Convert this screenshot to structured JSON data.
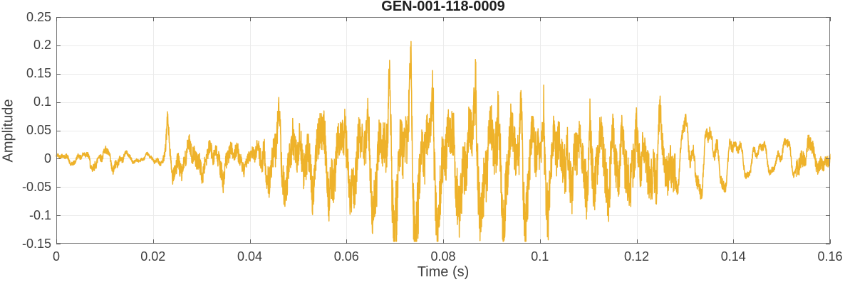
{
  "figure": {
    "title": "GEN-001-118-0009"
  },
  "colors": {
    "waveform": "#eeb22a",
    "axis_box": "#7b7b7b",
    "tick_mark": "#5f5f5f",
    "grid_line": "#ebebeb",
    "title_text": "#1f1f1f",
    "label_text": "#3f3f3f",
    "background": "#ffffff"
  },
  "chart_data": {
    "type": "line",
    "title": "GEN-001-118-0009",
    "xlabel": "Time (s)",
    "ylabel": "Amplitude",
    "xlim": [
      0,
      0.16
    ],
    "ylim": [
      -0.15,
      0.25
    ],
    "xticks": [
      0,
      0.02,
      0.04,
      0.06,
      0.08,
      0.1,
      0.12,
      0.14,
      0.16
    ],
    "xtick_labels": [
      "0",
      "0.02",
      "0.04",
      "0.06",
      "0.08",
      "0.1",
      "0.12",
      "0.14",
      "0.16"
    ],
    "yticks": [
      -0.15,
      -0.1,
      -0.05,
      0,
      0.05,
      0.1,
      0.15,
      0.2,
      0.25
    ],
    "ytick_labels": [
      "-0.15",
      "-0.1",
      "-0.05",
      "0",
      "0.05",
      "0.1",
      "0.15",
      "0.2",
      "0.25"
    ],
    "grid": true,
    "box": true,
    "tick_direction": "in",
    "legend": null,
    "description": "Dense speech-like audio waveform, quiet until ~0.022 s, voiced burst with periodic pitch spikes from ~0.045-0.13 s (max ~0.225 at 0.073 s, ~0.216 at 0.086 s, negative excursions to ~-0.12), decaying periodic tail to 0.16 s",
    "series": [
      {
        "name": "waveform",
        "color": "#eeb22a",
        "max_value": 0.225,
        "min_value": -0.122,
        "pitch_hz_mid": 225,
        "pitch_hz_tail": 196,
        "envelope": {
          "dt_ms": 2,
          "upper": [
            0.01,
            0.013,
            0.011,
            0.016,
            0.018,
            0.022,
            0.022,
            0.014,
            0.009,
            0.008,
            0.01,
            0.02,
            0.032,
            0.03,
            0.032,
            0.03,
            0.027,
            0.032,
            0.027,
            0.032,
            0.022,
            0.03,
            0.045,
            0.048,
            0.046,
            0.05,
            0.05,
            0.055,
            0.058,
            0.055,
            0.058,
            0.058,
            0.06,
            0.062,
            0.063,
            0.065,
            0.068,
            0.066,
            0.065,
            0.063,
            0.065,
            0.063,
            0.066,
            0.068,
            0.065,
            0.066,
            0.063,
            0.063,
            0.063,
            0.06,
            0.063,
            0.06,
            0.06,
            0.06,
            0.056,
            0.058,
            0.055,
            0.055,
            0.052,
            0.055,
            0.05,
            0.05,
            0.048,
            0.046,
            0.06,
            0.09,
            0.08,
            0.082,
            0.075,
            0.06,
            0.057,
            0.048,
            0.044,
            0.042,
            0.04,
            0.048,
            0.042,
            0.038,
            0.036,
            0.028,
            0.022
          ],
          "lower": [
            -0.01,
            -0.011,
            -0.013,
            -0.014,
            -0.027,
            -0.02,
            -0.027,
            -0.02,
            -0.009,
            -0.008,
            -0.01,
            -0.015,
            -0.035,
            -0.032,
            -0.027,
            -0.032,
            -0.03,
            -0.046,
            -0.027,
            -0.024,
            -0.02,
            -0.035,
            -0.055,
            -0.055,
            -0.052,
            -0.06,
            -0.056,
            -0.062,
            -0.066,
            -0.062,
            -0.068,
            -0.066,
            -0.07,
            -0.074,
            -0.078,
            -0.095,
            -0.1,
            -0.098,
            -0.095,
            -0.088,
            -0.09,
            -0.088,
            -0.092,
            -0.09,
            -0.088,
            -0.09,
            -0.088,
            -0.085,
            -0.088,
            -0.085,
            -0.088,
            -0.085,
            -0.082,
            -0.085,
            -0.082,
            -0.085,
            -0.082,
            -0.085,
            -0.082,
            -0.078,
            -0.08,
            -0.078,
            -0.074,
            -0.07,
            -0.07,
            -0.08,
            -0.086,
            -0.075,
            -0.068,
            -0.067,
            -0.05,
            -0.042,
            -0.035,
            -0.032,
            -0.031,
            -0.036,
            -0.04,
            -0.032,
            -0.028,
            -0.025,
            -0.02
          ]
        },
        "pulses_t_up_down_ms": [
          [
            23.0,
            0.048,
            -0.038
          ],
          [
            43.0,
            0.052,
            -0.042
          ],
          [
            46.1,
            0.055,
            -0.03
          ],
          [
            48.9,
            0.058,
            -0.035
          ],
          [
            52.0,
            0.055,
            -0.038
          ],
          [
            55.4,
            0.08,
            -0.045
          ],
          [
            59.7,
            0.07,
            -0.048
          ],
          [
            64.4,
            0.085,
            -0.052
          ],
          [
            68.9,
            0.128,
            -0.062
          ],
          [
            73.3,
            0.183,
            -0.098
          ],
          [
            77.9,
            0.14,
            -0.088
          ],
          [
            82.3,
            0.07,
            -0.062
          ],
          [
            86.7,
            0.178,
            -0.092
          ],
          [
            91.4,
            0.132,
            -0.082
          ],
          [
            96.1,
            0.112,
            -0.072
          ],
          [
            100.8,
            0.128,
            -0.076
          ],
          [
            105.6,
            0.102,
            -0.068
          ],
          [
            110.3,
            0.1,
            -0.066
          ],
          [
            115.2,
            0.096,
            -0.062
          ],
          [
            119.9,
            0.09,
            -0.058
          ],
          [
            124.8,
            0.082,
            -0.055
          ]
        ]
      }
    ]
  }
}
